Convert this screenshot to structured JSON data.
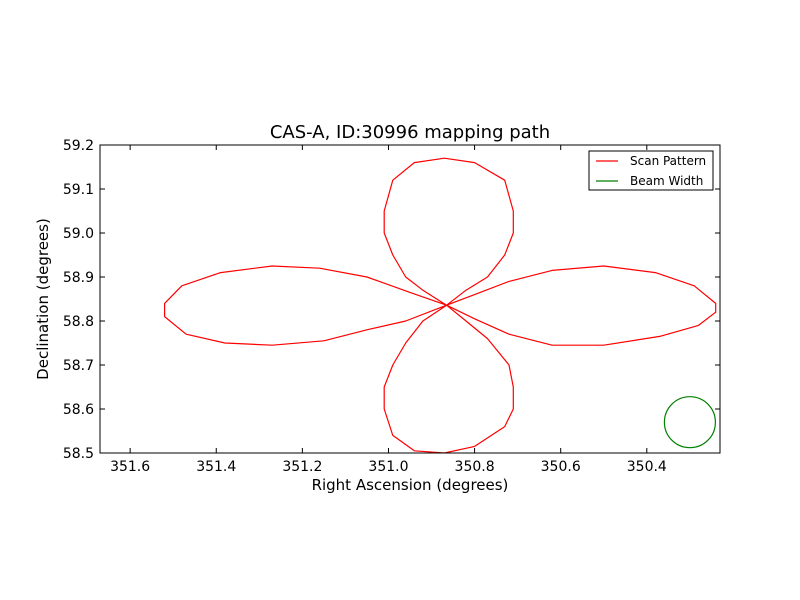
{
  "chart_data": {
    "type": "line",
    "title": "CAS-A, ID:30996 mapping path",
    "xlabel": "Right Ascension (degrees)",
    "ylabel": "Declination (degrees)",
    "xlim": [
      351.67,
      350.23
    ],
    "ylim": [
      58.5,
      59.2
    ],
    "x_inverted": true,
    "xticks": [
      351.6,
      351.4,
      351.2,
      351.0,
      350.8,
      350.6,
      350.4
    ],
    "xtick_labels": [
      "351.6",
      "351.4",
      "351.2",
      "351.0",
      "350.8",
      "350.6",
      "350.4"
    ],
    "yticks": [
      58.5,
      58.6,
      58.7,
      58.8,
      58.9,
      59.0,
      59.1,
      59.2
    ],
    "ytick_labels": [
      "58.5",
      "58.6",
      "58.7",
      "58.8",
      "58.9",
      "59.0",
      "59.1",
      "59.2"
    ],
    "grid": false,
    "legend_position": "top-right",
    "series": [
      {
        "name": "Scan Pattern",
        "color": "#ff0000",
        "points": [
          [
            350.865,
            58.836
          ],
          [
            350.92,
            58.87
          ],
          [
            350.96,
            58.9
          ],
          [
            350.99,
            58.95
          ],
          [
            351.01,
            59.0
          ],
          [
            351.01,
            59.05
          ],
          [
            350.99,
            59.12
          ],
          [
            350.94,
            59.16
          ],
          [
            350.87,
            59.17
          ],
          [
            350.8,
            59.16
          ],
          [
            350.73,
            59.12
          ],
          [
            350.71,
            59.05
          ],
          [
            350.71,
            59.0
          ],
          [
            350.73,
            58.95
          ],
          [
            350.77,
            58.9
          ],
          [
            350.82,
            58.87
          ],
          [
            350.865,
            58.836
          ],
          [
            350.8,
            58.86
          ],
          [
            350.72,
            58.89
          ],
          [
            350.62,
            58.915
          ],
          [
            350.5,
            58.925
          ],
          [
            350.38,
            58.91
          ],
          [
            350.29,
            58.88
          ],
          [
            350.24,
            58.84
          ],
          [
            350.24,
            58.82
          ],
          [
            350.28,
            58.79
          ],
          [
            350.37,
            58.765
          ],
          [
            350.5,
            58.745
          ],
          [
            350.62,
            58.745
          ],
          [
            350.72,
            58.77
          ],
          [
            350.8,
            58.805
          ],
          [
            350.865,
            58.836
          ],
          [
            350.82,
            58.8
          ],
          [
            350.77,
            58.76
          ],
          [
            350.72,
            58.7
          ],
          [
            350.71,
            58.65
          ],
          [
            350.71,
            58.6
          ],
          [
            350.73,
            58.56
          ],
          [
            350.8,
            58.515
          ],
          [
            350.87,
            58.5
          ],
          [
            350.94,
            58.505
          ],
          [
            350.99,
            58.54
          ],
          [
            351.01,
            58.6
          ],
          [
            351.01,
            58.65
          ],
          [
            350.99,
            58.7
          ],
          [
            350.96,
            58.75
          ],
          [
            350.92,
            58.8
          ],
          [
            350.865,
            58.836
          ],
          [
            350.96,
            58.8
          ],
          [
            351.05,
            58.78
          ],
          [
            351.15,
            58.755
          ],
          [
            351.27,
            58.745
          ],
          [
            351.38,
            58.75
          ],
          [
            351.47,
            58.77
          ],
          [
            351.52,
            58.81
          ],
          [
            351.52,
            58.84
          ],
          [
            351.48,
            58.88
          ],
          [
            351.39,
            58.91
          ],
          [
            351.27,
            58.925
          ],
          [
            351.16,
            58.92
          ],
          [
            351.05,
            58.9
          ],
          [
            350.95,
            58.865
          ],
          [
            350.865,
            58.836
          ]
        ]
      },
      {
        "name": "Beam Width",
        "color": "#008000",
        "shape": "circle",
        "center": [
          350.3,
          58.57
        ],
        "radius_deg": 0.058
      }
    ]
  }
}
